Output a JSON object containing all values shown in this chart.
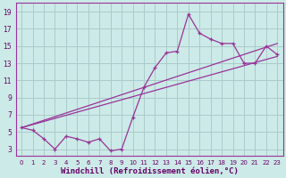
{
  "background_color": "#cceae7",
  "grid_color": "#aacccc",
  "line_color": "#993399",
  "xlabel": "Windchill (Refroidissement éolien,°C)",
  "xlabel_fontsize": 6.5,
  "ylabel_ticks": [
    3,
    5,
    7,
    9,
    11,
    13,
    15,
    17,
    19
  ],
  "xlabel_ticks": [
    0,
    1,
    2,
    3,
    4,
    5,
    6,
    7,
    8,
    9,
    10,
    11,
    12,
    13,
    14,
    15,
    16,
    17,
    18,
    19,
    20,
    21,
    22,
    23
  ],
  "xlim": [
    -0.5,
    23.5
  ],
  "ylim": [
    2.2,
    20.0
  ],
  "series1_x": [
    0,
    1,
    2,
    3,
    4,
    5,
    6,
    7,
    8,
    9,
    10,
    11,
    12,
    13,
    14,
    15,
    16,
    17,
    18,
    19,
    20,
    21,
    22,
    23
  ],
  "series1_y": [
    5.5,
    5.2,
    4.2,
    3.0,
    4.5,
    4.2,
    3.8,
    4.2,
    2.8,
    3.0,
    6.7,
    10.2,
    12.5,
    14.2,
    14.4,
    18.7,
    16.5,
    15.8,
    15.3,
    15.3,
    13.0,
    13.0,
    15.0,
    14.0
  ],
  "trend1_x": [
    0,
    23
  ],
  "trend1_y": [
    5.5,
    15.3
  ],
  "trend2_x": [
    0,
    23
  ],
  "trend2_y": [
    5.5,
    13.8
  ]
}
